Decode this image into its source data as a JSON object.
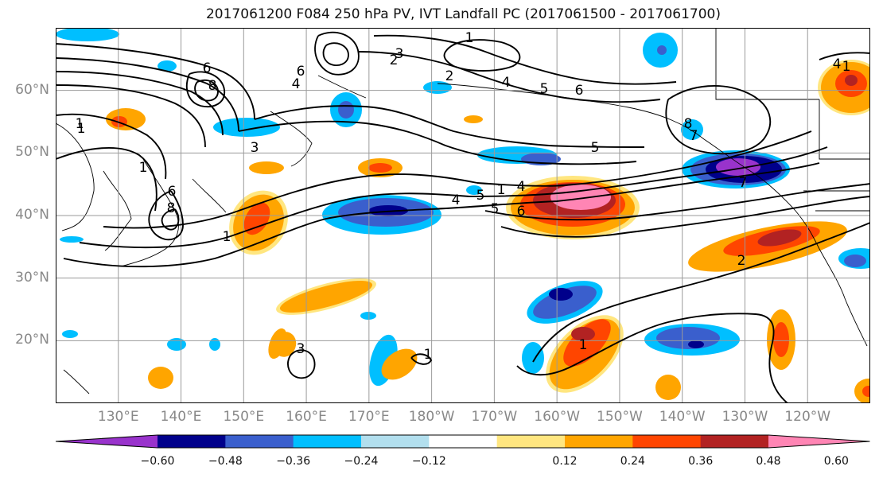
{
  "title": "2017061200 F084 250 hPa PV, IVT Landfall PC (2017061500 - 2017061700)",
  "map": {
    "lat_labels": [
      "20°N",
      "30°N",
      "40°N",
      "50°N",
      "60°N"
    ],
    "lon_labels": [
      "130°E",
      "140°E",
      "150°E",
      "160°E",
      "170°E",
      "180°W",
      "170°W",
      "160°W",
      "150°W",
      "140°W",
      "130°W",
      "120°W"
    ],
    "lon_range": [
      120,
      250
    ],
    "lat_range": [
      10,
      70
    ],
    "grid": true,
    "contour_labels": [
      "1",
      "6",
      "8",
      "6",
      "8",
      "3",
      "2",
      "1",
      "1",
      "2",
      "3",
      "4",
      "5",
      "6",
      "7",
      "8",
      "5",
      "4",
      "1",
      "1",
      "6",
      "4",
      "5",
      "1",
      "4",
      "5",
      "6",
      "7",
      "2",
      "3",
      "1",
      "1",
      "1",
      "4"
    ]
  },
  "colorbar": {
    "ticks": [
      "−0.60",
      "−0.48",
      "−0.36",
      "−0.24",
      "−0.12",
      "0.12",
      "0.24",
      "0.36",
      "0.48",
      "0.60"
    ],
    "colors": [
      "#9933cc",
      "#00008b",
      "#3a5fcd",
      "#00bfff",
      "#b2dfee",
      "#ffffff",
      "#ffe680",
      "#ffa500",
      "#ff4500",
      "#b22222",
      "#ff85b4"
    ]
  }
}
